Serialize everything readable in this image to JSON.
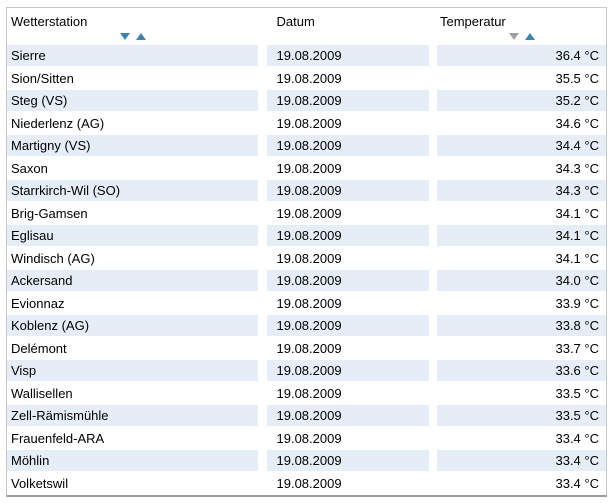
{
  "table": {
    "columns": [
      {
        "label": "Wetterstation",
        "sort": {
          "down": "#3d84a6",
          "up": "#3d84a6"
        }
      },
      {
        "label": "Datum",
        "sort": null
      },
      {
        "label": "Temperatur",
        "sort": {
          "down": "#a0a0a0",
          "up": "#3d84a6"
        }
      }
    ],
    "rows": [
      {
        "station": "Sierre",
        "date": "19.08.2009",
        "temperature": "36.4 °C"
      },
      {
        "station": "Sion/Sitten",
        "date": "19.08.2009",
        "temperature": "35.5 °C"
      },
      {
        "station": "Steg (VS)",
        "date": "19.08.2009",
        "temperature": "35.2 °C"
      },
      {
        "station": "Niederlenz (AG)",
        "date": "19.08.2009",
        "temperature": "34.6 °C"
      },
      {
        "station": "Martigny (VS)",
        "date": "19.08.2009",
        "temperature": "34.4 °C"
      },
      {
        "station": "Saxon",
        "date": "19.08.2009",
        "temperature": "34.3 °C"
      },
      {
        "station": "Starrkirch-Wil (SO)",
        "date": "19.08.2009",
        "temperature": "34.3 °C"
      },
      {
        "station": "Brig-Gamsen",
        "date": "19.08.2009",
        "temperature": "34.1 °C"
      },
      {
        "station": "Eglisau",
        "date": "19.08.2009",
        "temperature": "34.1 °C"
      },
      {
        "station": "Windisch (AG)",
        "date": "19.08.2009",
        "temperature": "34.1 °C"
      },
      {
        "station": "Ackersand",
        "date": "19.08.2009",
        "temperature": "34.0 °C"
      },
      {
        "station": "Evionnaz",
        "date": "19.08.2009",
        "temperature": "33.9 °C"
      },
      {
        "station": "Koblenz (AG)",
        "date": "19.08.2009",
        "temperature": "33.8 °C"
      },
      {
        "station": "Delémont",
        "date": "19.08.2009",
        "temperature": "33.7 °C"
      },
      {
        "station": "Visp",
        "date": "19.08.2009",
        "temperature": "33.6 °C"
      },
      {
        "station": "Wallisellen",
        "date": "19.08.2009",
        "temperature": "33.5 °C"
      },
      {
        "station": "Zell-Rämismühle",
        "date": "19.08.2009",
        "temperature": "33.5 °C"
      },
      {
        "station": "Frauenfeld-ARA",
        "date": "19.08.2009",
        "temperature": "33.4 °C"
      },
      {
        "station": "Möhlin",
        "date": "19.08.2009",
        "temperature": "33.4 °C"
      },
      {
        "station": "Volketswil",
        "date": "19.08.2009",
        "temperature": "33.4 °C"
      }
    ]
  },
  "colors": {
    "row_alt_background": "#e5eef6",
    "sort_active": "#3d84a6",
    "sort_inactive": "#a0a0a0",
    "border": "#c8c8c8",
    "border_bottom": "#9b9b9b"
  }
}
